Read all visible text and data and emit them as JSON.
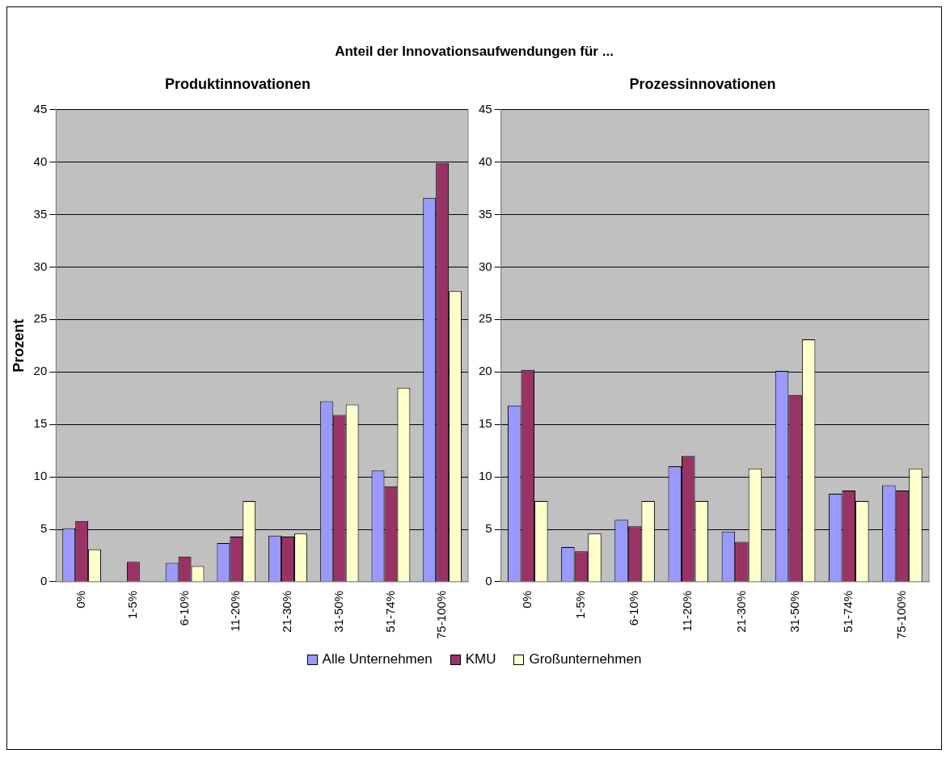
{
  "chart_data": [
    {
      "type": "bar",
      "title": "Anteil der Innovationsaufwendungen für ...",
      "subtitle": "Produktinnovationen",
      "ylabel": "Prozent",
      "categories": [
        "0%",
        "1-5%",
        "6-10%",
        "11-20%",
        "21-30%",
        "31-50%",
        "51-74%",
        "75-100%"
      ],
      "series": [
        {
          "name": "Alle Unternehmen",
          "color": "#9999ff",
          "values": [
            5.1,
            0,
            1.8,
            3.7,
            4.4,
            17.2,
            10.6,
            36.6
          ]
        },
        {
          "name": "KMU",
          "color": "#993366",
          "values": [
            5.8,
            1.9,
            2.4,
            4.3,
            4.3,
            15.9,
            9.1,
            39.9
          ]
        },
        {
          "name": "Großunternehmen",
          "color": "#ffffcc",
          "values": [
            3.1,
            0,
            1.5,
            7.7,
            4.6,
            16.9,
            18.5,
            27.7
          ]
        }
      ],
      "ylim": [
        0,
        45
      ],
      "yticks": [
        0,
        5,
        10,
        15,
        20,
        25,
        30,
        35,
        40,
        45
      ],
      "grid": "y",
      "legend": "bottom"
    },
    {
      "type": "bar",
      "title": "Prozessinnovationen",
      "categories": [
        "0%",
        "1-5%",
        "6-10%",
        "11-20%",
        "21-30%",
        "31-50%",
        "51-74%",
        "75-100%"
      ],
      "series": [
        {
          "color": "#9999ff",
          "values": [
            16.8,
            3.3,
            5.9,
            11.0,
            4.8,
            20.1,
            8.4,
            9.2
          ]
        },
        {
          "color": "#993366",
          "values": [
            20.2,
            2.9,
            5.3,
            12.0,
            3.8,
            17.8,
            8.7,
            8.7
          ]
        },
        {
          "color": "#ffffcc",
          "values": [
            7.7,
            4.6,
            7.7,
            7.7,
            10.8,
            23.1,
            7.7,
            10.8
          ]
        }
      ],
      "ylim": [
        0,
        45
      ],
      "yticks": [
        0,
        5,
        10,
        15,
        20,
        25,
        30,
        35,
        40,
        45
      ],
      "grid": "y"
    }
  ]
}
